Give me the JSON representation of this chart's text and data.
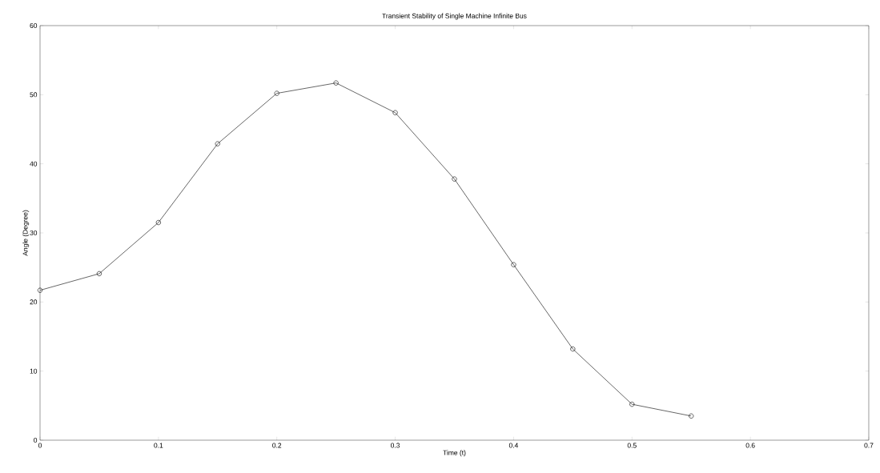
{
  "chart_data": {
    "type": "line",
    "title": "Transient Stability of Single Machine Infinite Bus",
    "xlabel": "Time (t)",
    "ylabel": "Angle (Degree)",
    "x": [
      0,
      0.05,
      0.1,
      0.15,
      0.2,
      0.25,
      0.3,
      0.35,
      0.4,
      0.45,
      0.5,
      0.55
    ],
    "series": [
      {
        "color": "#000000",
        "values": [
          21.7,
          24.1,
          31.5,
          42.9,
          50.2,
          51.7,
          47.4,
          37.8,
          25.4,
          13.2,
          5.2,
          3.5
        ]
      }
    ],
    "xlim": [
      0,
      0.7
    ],
    "ylim": [
      0,
      60
    ],
    "xticks": [
      0,
      0.1,
      0.2,
      0.3,
      0.4,
      0.5,
      0.6,
      0.7
    ],
    "yticks": [
      0,
      10,
      20,
      30,
      40,
      50,
      60
    ],
    "grid": false,
    "marker": "circle",
    "line_style": "solid"
  }
}
